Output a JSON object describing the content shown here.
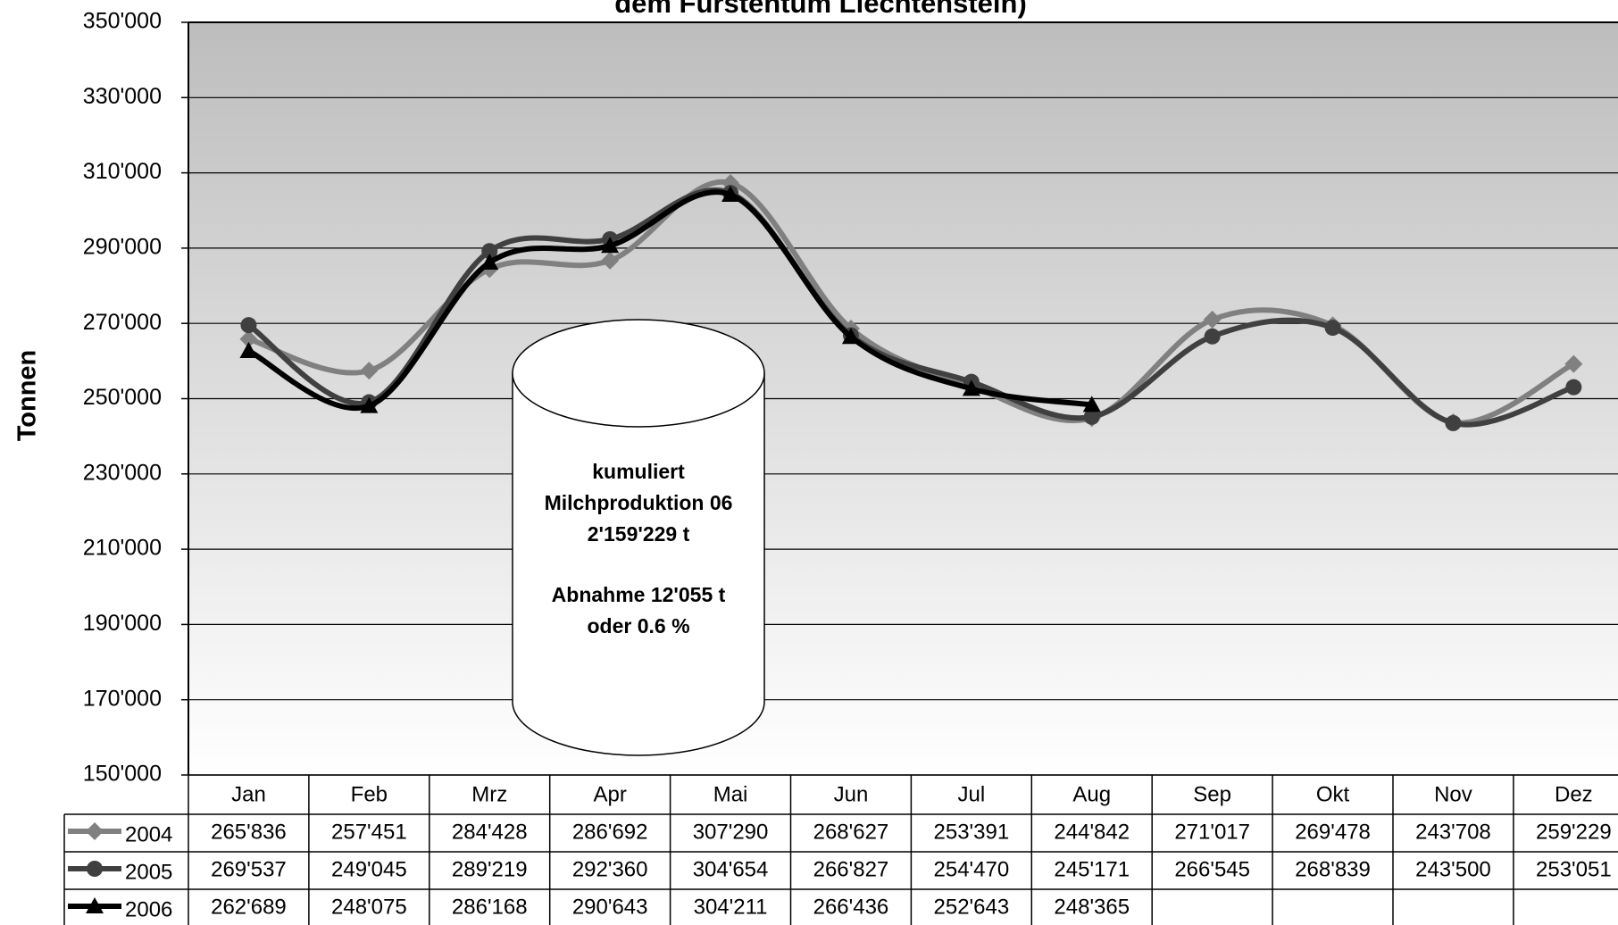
{
  "chart_data": {
    "type": "line",
    "title": "dem Fürstentum Liechtenstein)",
    "ylabel": "Tonnen",
    "categories": [
      "Jan",
      "Feb",
      "Mrz",
      "Apr",
      "Mai",
      "Jun",
      "Jul",
      "Aug",
      "Sep",
      "Okt",
      "Nov",
      "Dez"
    ],
    "series": [
      {
        "name": "2004",
        "color": "#808080",
        "marker": "diamond",
        "values": [
          265836,
          257451,
          284428,
          286692,
          307290,
          268627,
          253391,
          244842,
          271017,
          269478,
          243708,
          259229
        ],
        "value_labels": [
          "265'836",
          "257'451",
          "284'428",
          "286'692",
          "307'290",
          "268'627",
          "253'391",
          "244'842",
          "271'017",
          "269'478",
          "243'708",
          "259'229"
        ]
      },
      {
        "name": "2005",
        "color": "#404040",
        "marker": "circle",
        "values": [
          269537,
          249045,
          289219,
          292360,
          304654,
          266827,
          254470,
          245171,
          266545,
          268839,
          243500,
          253051
        ],
        "value_labels": [
          "269'537",
          "249'045",
          "289'219",
          "292'360",
          "304'654",
          "266'827",
          "254'470",
          "245'171",
          "266'545",
          "268'839",
          "243'500",
          "253'051"
        ]
      },
      {
        "name": "2006",
        "color": "#000000",
        "marker": "triangle",
        "values": [
          262689,
          248075,
          286168,
          290643,
          304211,
          266436,
          252643,
          248365,
          null,
          null,
          null,
          null
        ],
        "value_labels": [
          "262'689",
          "248'075",
          "286'168",
          "290'643",
          "304'211",
          "266'436",
          "252'643",
          "248'365",
          null,
          null,
          null,
          null
        ]
      }
    ],
    "ylim": [
      150000,
      350000
    ],
    "yticks": [
      {
        "value": 150000,
        "label": "150'000"
      },
      {
        "value": 170000,
        "label": "170'000"
      },
      {
        "value": 190000,
        "label": "190'000"
      },
      {
        "value": 210000,
        "label": "210'000"
      },
      {
        "value": 230000,
        "label": "230'000"
      },
      {
        "value": 250000,
        "label": "250'000"
      },
      {
        "value": 270000,
        "label": "270'000"
      },
      {
        "value": 290000,
        "label": "290'000"
      },
      {
        "value": 310000,
        "label": "310'000"
      },
      {
        "value": 330000,
        "label": "330'000"
      },
      {
        "value": 350000,
        "label": "350'000"
      }
    ],
    "grid": true,
    "annotation": [
      "kumuliert",
      "Milchproduktion 06",
      "2'159'229 t",
      "Abnahme  12'055 t",
      "oder  0.6 %"
    ]
  }
}
